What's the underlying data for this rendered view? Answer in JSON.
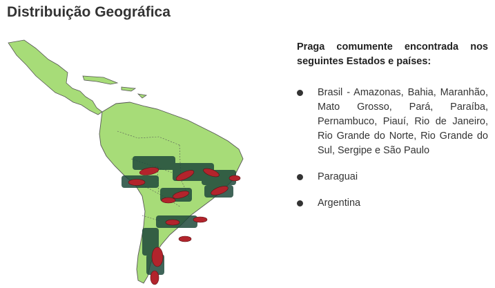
{
  "page": {
    "title": "Distribuição Geográfica"
  },
  "panel": {
    "lead": "Praga comumente encontrada nos seguintes Estados e países:",
    "items": [
      "Brasil - Amazonas, Bahia, Maranhão, Mato Grosso, Pará, Paraíba, Pernambuco, Piauí, Rio de Janeiro, Rio Grande do Norte, Rio Grande do Sul, Sergipe e São Paulo",
      "Paraguai",
      "Argentina"
    ]
  },
  "colors": {
    "land": "#a7dc78",
    "border": "#555555",
    "insect": "#b2242c",
    "leaf": "#1f4a3c"
  },
  "icons": {
    "bullet": "filled-circle-bullet",
    "insect": "insect-icon"
  }
}
